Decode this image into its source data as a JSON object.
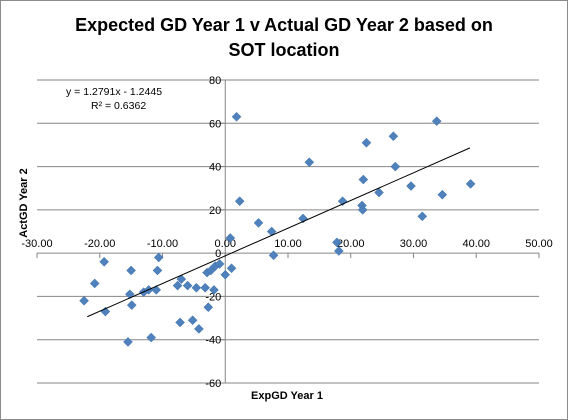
{
  "chart_data": {
    "type": "scatter",
    "title_lines": [
      "Expected GD Year 1 v Actual GD Year 2 based on",
      "SOT location"
    ],
    "xlabel": "ExpGD Year 1",
    "ylabel": "ActGD Year 2",
    "xlim": [
      -30,
      50
    ],
    "ylim": [
      -60,
      80
    ],
    "x_ticks": [
      -30,
      -20,
      -10,
      0,
      10,
      20,
      30,
      40,
      50
    ],
    "x_tick_labels": [
      "-30.00",
      "-20.00",
      "-10.00",
      "0.00",
      "10.00",
      "20.00",
      "30.00",
      "40.00",
      "50.00"
    ],
    "y_ticks": [
      -60,
      -40,
      -20,
      0,
      20,
      40,
      60,
      80
    ],
    "y_tick_labels": [
      "-60",
      "-40",
      "-20",
      "0",
      "20",
      "40",
      "60",
      "80"
    ],
    "grid": {
      "horizontal": true,
      "vertical": false
    },
    "marker_color": "#4f81bd",
    "trendline": {
      "slope": 1.2791,
      "intercept": -1.2445,
      "x_range": [
        -22,
        39
      ],
      "equation": "y = 1.2791x - 1.2445",
      "r_squared": "R² = 0.6362"
    },
    "points": [
      {
        "x": -22.5,
        "y": -22
      },
      {
        "x": -20.8,
        "y": -14
      },
      {
        "x": -19.3,
        "y": -4
      },
      {
        "x": -19.1,
        "y": -27
      },
      {
        "x": -15.2,
        "y": -19
      },
      {
        "x": -15.0,
        "y": -8
      },
      {
        "x": -14.9,
        "y": -24
      },
      {
        "x": -15.5,
        "y": -41
      },
      {
        "x": -13.0,
        "y": -18
      },
      {
        "x": -12.2,
        "y": -17
      },
      {
        "x": -11.8,
        "y": -39
      },
      {
        "x": -11.0,
        "y": -17
      },
      {
        "x": -10.8,
        "y": -8
      },
      {
        "x": -10.6,
        "y": -2
      },
      {
        "x": -7.6,
        "y": -15
      },
      {
        "x": -7.2,
        "y": -32
      },
      {
        "x": -7.0,
        "y": -12
      },
      {
        "x": -6.0,
        "y": -15
      },
      {
        "x": -5.2,
        "y": -31
      },
      {
        "x": -4.6,
        "y": -16
      },
      {
        "x": -4.2,
        "y": -35
      },
      {
        "x": -3.2,
        "y": -16
      },
      {
        "x": -2.9,
        "y": -9
      },
      {
        "x": -2.7,
        "y": -25
      },
      {
        "x": -2.3,
        "y": -8
      },
      {
        "x": -1.8,
        "y": -17
      },
      {
        "x": -1.6,
        "y": -6
      },
      {
        "x": -0.9,
        "y": -5
      },
      {
        "x": 0.0,
        "y": -10
      },
      {
        "x": 0.8,
        "y": 7
      },
      {
        "x": 1.0,
        "y": -7
      },
      {
        "x": 1.8,
        "y": 63
      },
      {
        "x": 2.3,
        "y": 24
      },
      {
        "x": 5.3,
        "y": 14
      },
      {
        "x": 7.4,
        "y": 10
      },
      {
        "x": 7.7,
        "y": -1
      },
      {
        "x": 12.4,
        "y": 16
      },
      {
        "x": 13.4,
        "y": 42
      },
      {
        "x": 17.8,
        "y": 5
      },
      {
        "x": 18.1,
        "y": 1
      },
      {
        "x": 18.7,
        "y": 24
      },
      {
        "x": 21.8,
        "y": 22
      },
      {
        "x": 21.9,
        "y": 20
      },
      {
        "x": 22.0,
        "y": 34
      },
      {
        "x": 22.5,
        "y": 51
      },
      {
        "x": 24.5,
        "y": 28
      },
      {
        "x": 26.8,
        "y": 54
      },
      {
        "x": 27.1,
        "y": 40
      },
      {
        "x": 29.6,
        "y": 31
      },
      {
        "x": 31.4,
        "y": 17
      },
      {
        "x": 33.7,
        "y": 61
      },
      {
        "x": 34.6,
        "y": 27
      },
      {
        "x": 39.1,
        "y": 32
      }
    ]
  }
}
